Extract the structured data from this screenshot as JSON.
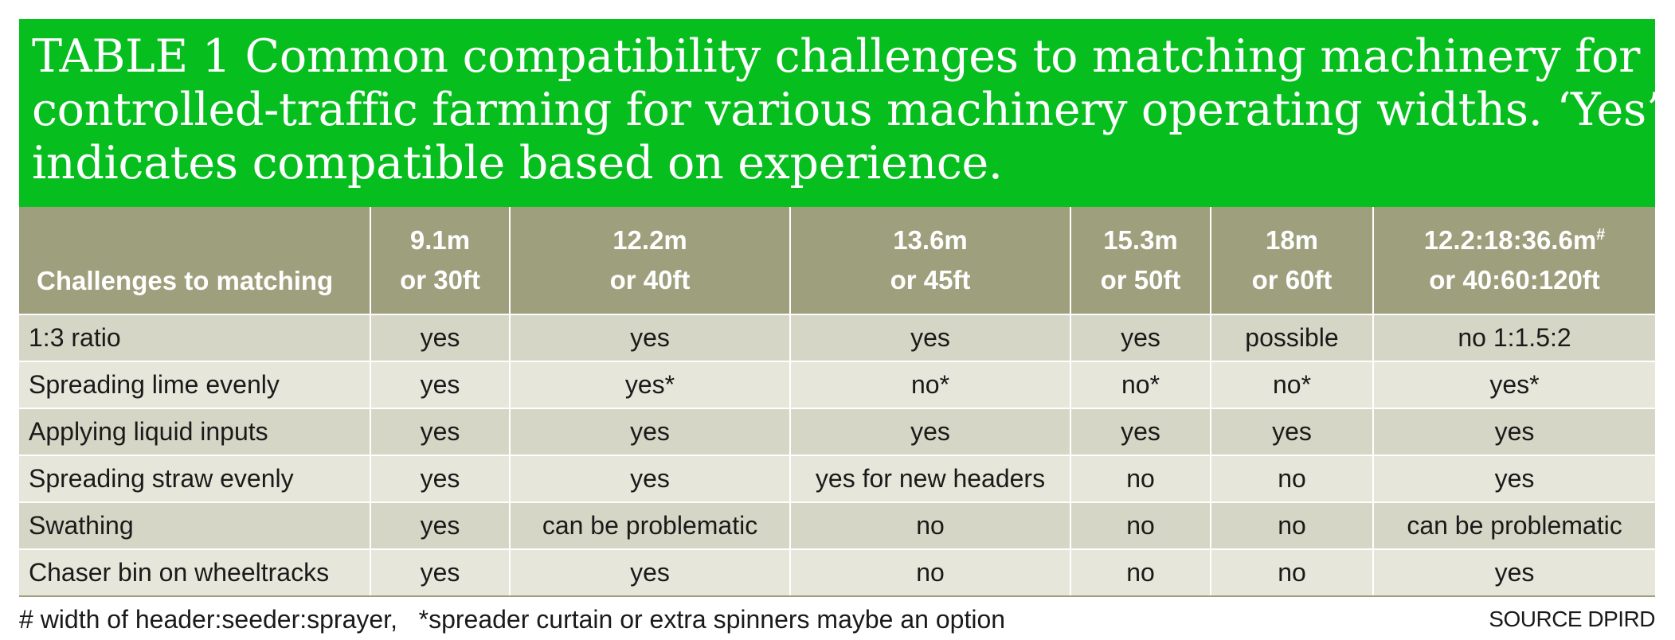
{
  "title": {
    "lines": [
      "TABLE 1  Common compatibility challenges to matching machinery for",
      "controlled-traffic farming for various machinery operating widths. ‘Yes’",
      "indicates compatible based on experience."
    ]
  },
  "table": {
    "headers": [
      {
        "line1": "",
        "line2": "Challenges to matching"
      },
      {
        "line1": "9.1m",
        "line2": "or 30ft"
      },
      {
        "line1": "12.2m",
        "line2": "or 40ft"
      },
      {
        "line1": "13.6m",
        "line2": "or 45ft"
      },
      {
        "line1": "15.3m",
        "line2": "or 50ft"
      },
      {
        "line1": "18m",
        "line2": "or 60ft"
      },
      {
        "line1": "12.2:18:36.6m",
        "sup": "#",
        "line2": "or 40:60:120ft"
      }
    ],
    "rows": [
      [
        "1:3 ratio",
        "yes",
        "yes",
        "yes",
        "yes",
        "possible",
        "no 1:1.5:2"
      ],
      [
        "Spreading lime evenly",
        "yes",
        "yes*",
        "no*",
        "no*",
        "no*",
        "yes*"
      ],
      [
        "Applying liquid inputs",
        "yes",
        "yes",
        "yes",
        "yes",
        "yes",
        "yes"
      ],
      [
        "Spreading straw evenly",
        "yes",
        "yes",
        "yes for new headers",
        "no",
        "no",
        "yes"
      ],
      [
        "Swathing",
        "yes",
        "can be problematic",
        "no",
        "no",
        "no",
        "can be problematic"
      ],
      [
        "Chaser bin on wheeltracks",
        "yes",
        "yes",
        "no",
        "no",
        "no",
        "yes"
      ]
    ]
  },
  "footer": {
    "footnote": "# width of header:seeder:sprayer,   *spreader curtain or extra spinners maybe an option",
    "source": "SOURCE DPIRD"
  },
  "colors": {
    "title_bg": "#06bf1f",
    "header_bg": "#9e9f7c",
    "row_dark": "#d6d6c6",
    "row_light": "#e6e6da"
  }
}
